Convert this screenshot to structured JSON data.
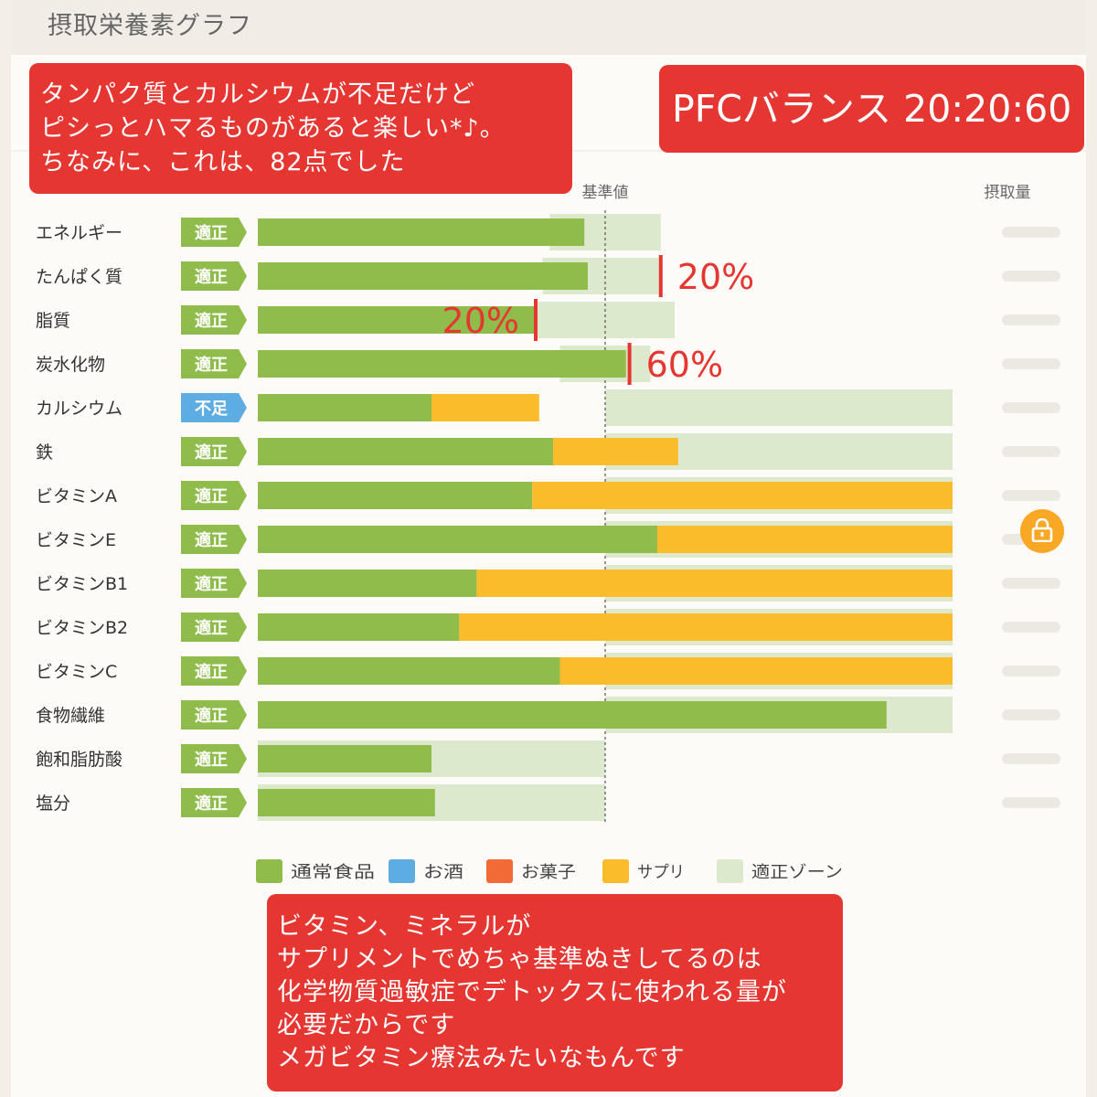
{
  "header": {
    "title": "摂取栄養素グラフ"
  },
  "callouts": {
    "top": {
      "line1": "タンパク質とカルシウムが不足だけど",
      "line2": "ピシっとハマるものがあると楽しい*♪。",
      "line3": "ちなみに、これは、82点でした"
    },
    "pfc": "PFCバランス 20:20:60",
    "bottom": {
      "line1": "ビタミン、ミネラルが",
      "line2": "サプリメントでめちゃ基準ぬきしてるのは",
      "line3": "化学物質過敏症でデトックスに使われる量が",
      "line4": "必要だからです",
      "line5": "メガビタミン療法みたいなもんです"
    }
  },
  "lock_icon": "lock-icon",
  "colors": {
    "food": "#8fbc4b",
    "alcohol": "#5dade2",
    "snack": "#f26b36",
    "supplement": "#fbbc2c",
    "zone": "#dde9cc",
    "badge_ok": "#8fbc4b",
    "badge_low": "#5dade2",
    "annotation": "#e53632"
  },
  "chart_data": {
    "type": "bar",
    "orientation": "horizontal",
    "stacked": true,
    "reference_label": "基準値",
    "intake_header": "摂取量",
    "reference_value": 100,
    "xlim": [
      0,
      200
    ],
    "categories": [
      "エネルギー",
      "たんぱく質",
      "脂質",
      "炭水化物",
      "カルシウム",
      "鉄",
      "ビタミンA",
      "ビタミンE",
      "ビタミンB1",
      "ビタミンB2",
      "ビタミンC",
      "食物繊維",
      "飽和脂肪酸",
      "塩分"
    ],
    "status": [
      "適正",
      "適正",
      "適正",
      "適正",
      "不足",
      "適正",
      "適正",
      "適正",
      "適正",
      "適正",
      "適正",
      "適正",
      "適正",
      "適正"
    ],
    "series": [
      {
        "name": "通常食品",
        "key": "food",
        "values": [
          94,
          95,
          80,
          106,
          50,
          85,
          79,
          115,
          63,
          58,
          87,
          181,
          50,
          51
        ]
      },
      {
        "name": "お酒",
        "key": "alcohol",
        "values": [
          0,
          0,
          0,
          0,
          0,
          0,
          0,
          0,
          0,
          0,
          0,
          0,
          0,
          0
        ]
      },
      {
        "name": "お菓子",
        "key": "snack",
        "values": [
          0,
          0,
          0,
          0,
          0,
          0,
          0,
          0,
          0,
          0,
          0,
          0,
          0,
          0
        ]
      },
      {
        "name": "サプリ",
        "key": "supplement",
        "values": [
          0,
          0,
          0,
          0,
          31,
          36,
          121,
          85,
          137,
          142,
          113,
          0,
          0,
          0
        ]
      }
    ],
    "zones": [
      [
        84,
        116
      ],
      [
        82,
        116
      ],
      [
        80,
        120
      ],
      [
        87,
        113
      ],
      [
        100,
        200
      ],
      [
        100,
        200
      ],
      [
        100,
        200
      ],
      [
        100,
        200
      ],
      [
        100,
        200
      ],
      [
        100,
        200
      ],
      [
        100,
        200
      ],
      [
        100,
        200
      ],
      [
        0,
        100
      ],
      [
        0,
        100
      ]
    ],
    "zone_name": "適正ゾーン",
    "legend": [
      "通常食品",
      "お酒",
      "お菓子",
      "サプリ",
      "適正ゾーン"
    ],
    "annotations": [
      {
        "row": 1,
        "value": 116,
        "label": "20%",
        "side": "right"
      },
      {
        "row": 2,
        "value": 80,
        "label": "20%",
        "side": "left"
      },
      {
        "row": 3,
        "value": 107,
        "label": "60%",
        "side": "right"
      }
    ]
  }
}
